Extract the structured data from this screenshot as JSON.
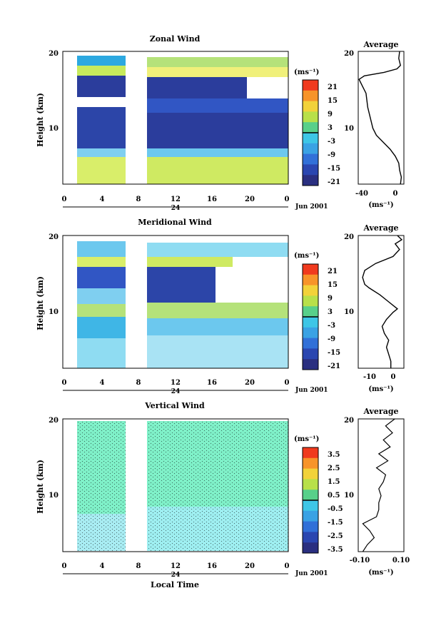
{
  "chart_data": [
    {
      "type": "heatmap",
      "title": "Zonal Wind",
      "ylabel": "Height (km)",
      "xlabel": "",
      "x_ticks": [
        "0",
        "4",
        "8",
        "12",
        "16",
        "20",
        "0"
      ],
      "y_ticks": [
        "20",
        "10"
      ],
      "xlim": [
        0,
        24
      ],
      "ylim": [
        1,
        20
      ],
      "date_label": "24",
      "month_label": "Jun 2001",
      "colorbar": {
        "unit": "(ms⁻¹)",
        "ticks": [
          "21",
          "15",
          "9",
          "3",
          "-3",
          "-9",
          "-15",
          "-21"
        ]
      },
      "profile": {
        "title": "Average",
        "xlabel": "(ms⁻¹)",
        "x_ticks": [
          "-40",
          "0"
        ],
        "y_ticks": [
          "20",
          "10"
        ],
        "xlim": [
          -45,
          8
        ],
        "ylim": [
          1,
          20
        ],
        "points": [
          [
            4,
            1
          ],
          [
            5,
            2
          ],
          [
            3,
            3
          ],
          [
            2,
            4
          ],
          [
            -2,
            5
          ],
          [
            -8,
            6
          ],
          [
            -16,
            7
          ],
          [
            -24,
            8
          ],
          [
            -28,
            9
          ],
          [
            -30,
            10
          ],
          [
            -32,
            11
          ],
          [
            -34,
            12
          ],
          [
            -35,
            13
          ],
          [
            -36,
            14
          ],
          [
            -40,
            15
          ],
          [
            -44,
            16
          ],
          [
            -38,
            16.5
          ],
          [
            -15,
            17
          ],
          [
            0,
            17.5
          ],
          [
            4,
            18
          ],
          [
            2,
            19
          ],
          [
            3,
            20
          ]
        ]
      }
    },
    {
      "type": "heatmap",
      "title": "Meridional Wind",
      "ylabel": "Height (km)",
      "xlabel": "",
      "x_ticks": [
        "0",
        "4",
        "8",
        "12",
        "16",
        "20",
        "0"
      ],
      "y_ticks": [
        "20",
        "10"
      ],
      "xlim": [
        0,
        24
      ],
      "ylim": [
        1,
        20
      ],
      "date_label": "24",
      "month_label": "Jun 2001",
      "colorbar": {
        "unit": "(ms⁻¹)",
        "ticks": [
          "21",
          "15",
          "9",
          "3",
          "-3",
          "-9",
          "-15",
          "-21"
        ]
      },
      "profile": {
        "title": "Average",
        "xlabel": "(ms⁻¹)",
        "x_ticks": [
          "-10",
          "0"
        ],
        "y_ticks": [
          "20",
          "10"
        ],
        "xlim": [
          -16,
          5
        ],
        "ylim": [
          1,
          20
        ],
        "points": [
          [
            -1,
            1
          ],
          [
            -1,
            2
          ],
          [
            -2,
            3
          ],
          [
            -3,
            4
          ],
          [
            -2,
            5
          ],
          [
            -4,
            6
          ],
          [
            -5,
            7
          ],
          [
            -3,
            8
          ],
          [
            0,
            9
          ],
          [
            2,
            9.5
          ],
          [
            -2,
            10.5
          ],
          [
            -6,
            11.5
          ],
          [
            -11,
            12.5
          ],
          [
            -13,
            13
          ],
          [
            -14,
            14
          ],
          [
            -13,
            15
          ],
          [
            -8,
            16
          ],
          [
            0,
            17
          ],
          [
            3,
            18
          ],
          [
            1,
            18.8
          ],
          [
            4,
            19.4
          ],
          [
            2,
            20
          ]
        ]
      }
    },
    {
      "type": "heatmap",
      "title": "Vertical Wind",
      "ylabel": "Height (km)",
      "xlabel": "Local Time",
      "x_ticks": [
        "0",
        "4",
        "8",
        "12",
        "16",
        "20",
        "0"
      ],
      "y_ticks": [
        "20",
        "10"
      ],
      "xlim": [
        0,
        24
      ],
      "ylim": [
        1,
        20
      ],
      "date_label": "24",
      "month_label": "Jun 2001",
      "colorbar": {
        "unit": "(ms⁻¹)",
        "ticks": [
          "3.5",
          "2.5",
          "1.5",
          "0.5",
          "-0.5",
          "-1.5",
          "-2.5",
          "-3.5"
        ]
      },
      "profile": {
        "title": "Average",
        "xlabel": "(ms⁻¹)",
        "x_ticks": [
          "-0.10",
          "0.10"
        ],
        "y_ticks": [
          "20",
          "10"
        ],
        "xlim": [
          -0.1,
          0.1
        ],
        "ylim": [
          1,
          20
        ],
        "points": [
          [
            -0.08,
            1
          ],
          [
            -0.06,
            2
          ],
          [
            -0.03,
            3
          ],
          [
            -0.05,
            4
          ],
          [
            -0.08,
            5
          ],
          [
            -0.02,
            6
          ],
          [
            -0.01,
            7
          ],
          [
            -0.01,
            8
          ],
          [
            0.0,
            9
          ],
          [
            -0.01,
            10
          ],
          [
            0.01,
            11
          ],
          [
            0.02,
            12
          ],
          [
            -0.02,
            13
          ],
          [
            0.03,
            14
          ],
          [
            -0.01,
            15
          ],
          [
            0.04,
            16
          ],
          [
            0.01,
            17
          ],
          [
            0.05,
            18
          ],
          [
            0.02,
            19
          ],
          [
            0.06,
            20
          ]
        ]
      }
    }
  ]
}
